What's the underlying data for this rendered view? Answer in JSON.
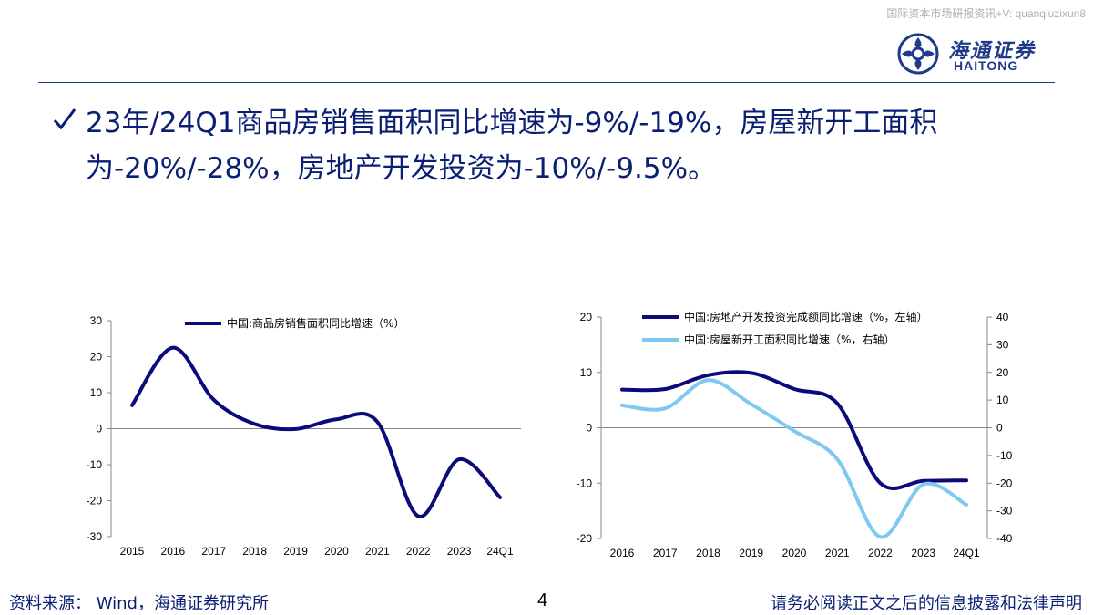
{
  "watermark": "国际资本市场研报资讯+V: quanqiuzixun8",
  "brand": {
    "cn": "海通证券",
    "en": "HAITONG",
    "color": "#1f3a8a"
  },
  "headline": {
    "check_icon": "check-icon",
    "text": "23年/24Q1商品房销售面积同比增速为-9%/-19%，房屋新开工面积为-20%/-28%，房地产开发投资为-10%/-9.5%。"
  },
  "footer": {
    "source": "资料来源：  Wind，海通证券研究所",
    "page": "4",
    "disclaimer": "请务必阅读正文之后的信息披露和法律声明"
  },
  "chart_data": [
    {
      "type": "line",
      "x_tick_labels": [
        "2015",
        "2016",
        "2017",
        "2018",
        "2019",
        "2020",
        "2021",
        "2022",
        "2023",
        "24Q1"
      ],
      "ylim": [
        -30,
        30
      ],
      "y_ticks": [
        -30,
        -20,
        -10,
        0,
        10,
        20,
        30
      ],
      "grid": false,
      "legend_position": "top",
      "series": [
        {
          "name": "中国:商品房销售面积同比增速（%）",
          "color": "#0a0a7a",
          "axis": "left",
          "points": [
            [
              0,
              6.5
            ],
            [
              1,
              22.5
            ],
            [
              2,
              8
            ],
            [
              3,
              1.3
            ],
            [
              4,
              -0.1
            ],
            [
              5,
              2.6
            ],
            [
              6,
              1.9
            ],
            [
              7,
              -24.3
            ],
            [
              8,
              -8.5
            ],
            [
              9,
              -19.1
            ]
          ]
        }
      ]
    },
    {
      "type": "line",
      "x_tick_labels": [
        "2016",
        "2017",
        "2018",
        "2019",
        "2020",
        "2021",
        "2022",
        "2023",
        "24Q1"
      ],
      "ylim": [
        -20,
        20
      ],
      "y_ticks": [
        -20,
        -10,
        0,
        10,
        20
      ],
      "y2lim": [
        -40,
        40
      ],
      "y2_ticks": [
        -40,
        -30,
        -20,
        -10,
        0,
        10,
        20,
        30,
        40
      ],
      "grid": false,
      "legend_position": "top",
      "series": [
        {
          "name": "中国:房地产开发投资完成额同比增速（%，左轴）",
          "color": "#0a0a7a",
          "axis": "left",
          "points": [
            [
              0,
              6.9
            ],
            [
              1,
              7
            ],
            [
              2,
              9.5
            ],
            [
              3,
              9.9
            ],
            [
              4,
              7
            ],
            [
              5,
              4.4
            ],
            [
              6,
              -10
            ],
            [
              7,
              -9.6
            ],
            [
              8,
              -9.5
            ]
          ]
        },
        {
          "name": "中国:房屋新开工面积同比增速（%，右轴）",
          "color": "#7ec8f2",
          "axis": "right",
          "points": [
            [
              0,
              8.1
            ],
            [
              1,
              7
            ],
            [
              2,
              17.2
            ],
            [
              3,
              8.5
            ],
            [
              4,
              -1.2
            ],
            [
              5,
              -11.4
            ],
            [
              6,
              -39.4
            ],
            [
              7,
              -20.4
            ],
            [
              8,
              -27.8
            ]
          ]
        }
      ]
    }
  ]
}
